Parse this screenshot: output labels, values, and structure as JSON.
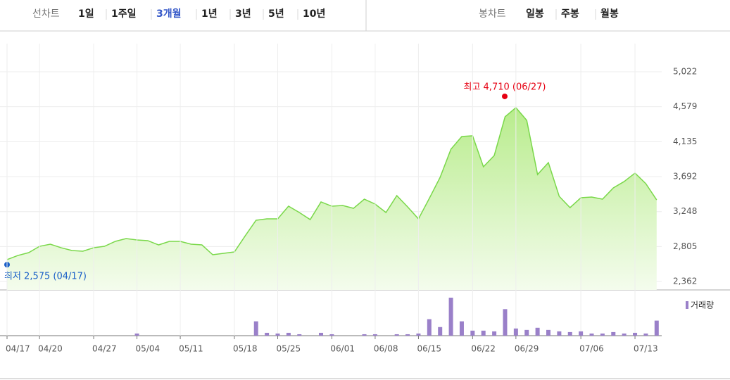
{
  "tabs": {
    "line_group": {
      "label": "선차트",
      "items": [
        "1일",
        "1주일",
        "3개월",
        "1년",
        "3년",
        "5년",
        "10년"
      ],
      "active": 2
    },
    "candle_group": {
      "label": "봉차트",
      "items": [
        "일봉",
        "주봉",
        "월봉"
      ]
    }
  },
  "chart_data": [
    {
      "type": "line",
      "color": "#7ad84a",
      "values": [
        2639,
        2692,
        2728,
        2808,
        2835,
        2790,
        2755,
        2746,
        2790,
        2808,
        2871,
        2906,
        2889,
        2880,
        2826,
        2871,
        2871,
        2835,
        2826,
        2701,
        2719,
        2737,
        2942,
        3139,
        3156,
        3156,
        3317,
        3237,
        3147,
        3371,
        3317,
        3326,
        3290,
        3406,
        3344,
        3237,
        3451,
        3308,
        3156,
        3415,
        3683,
        4040,
        4201,
        4210,
        3817,
        3960,
        4451,
        4567,
        4406,
        3719,
        3870,
        3442,
        3299,
        3424,
        3433,
        3406,
        3549,
        3630,
        3737,
        3603,
        3397
      ],
      "ylim": [
        2362,
        5022
      ],
      "yticks": [
        {
          "value": 2362,
          "label": "2,362"
        },
        {
          "value": 2805,
          "label": "2,805"
        },
        {
          "value": 3248,
          "label": "3,248"
        },
        {
          "value": 3692,
          "label": "3,692"
        },
        {
          "value": 4135,
          "label": "4,135"
        },
        {
          "value": 4579,
          "label": "4,579"
        },
        {
          "value": 5022,
          "label": "5,022"
        }
      ],
      "annotations": [
        {
          "text": "최고 4,710 (06/27)",
          "value": 4710,
          "color": "#e60012"
        },
        {
          "text": "최저 2,575 (04/17)",
          "value": 2575,
          "color": "#1a5fc8"
        }
      ],
      "grid": true
    },
    {
      "type": "bar",
      "color": "#9a80c9",
      "categories": [
        "04/17",
        null,
        null,
        "04/20",
        null,
        null,
        null,
        null,
        "04/27",
        null,
        null,
        null,
        "05/04",
        null,
        null,
        null,
        "05/11",
        null,
        null,
        null,
        null,
        "05/18",
        null,
        null,
        null,
        "05/25",
        null,
        null,
        null,
        null,
        "06/01",
        null,
        null,
        null,
        "06/08",
        null,
        null,
        null,
        "06/15",
        null,
        null,
        null,
        null,
        "06/22",
        null,
        null,
        null,
        "06/29",
        null,
        null,
        null,
        null,
        null,
        "07/06",
        null,
        null,
        null,
        null,
        "07/13",
        null,
        null
      ],
      "series": [
        {
          "name": "거래량",
          "color": "#9a80c9",
          "values": [
            0,
            0,
            0,
            0,
            0,
            0,
            0,
            0,
            0,
            0,
            0,
            0,
            3,
            0,
            0,
            0,
            0,
            0,
            0,
            0,
            0,
            0,
            0,
            20,
            4,
            3,
            4,
            2,
            0,
            4,
            2,
            0,
            0,
            2,
            2,
            0,
            2,
            2,
            3,
            23,
            12,
            53,
            20,
            7,
            7,
            6,
            37,
            10,
            8,
            11,
            8,
            6,
            5,
            6,
            3,
            3,
            5,
            3,
            4,
            3,
            21
          ]
        }
      ]
    }
  ]
}
